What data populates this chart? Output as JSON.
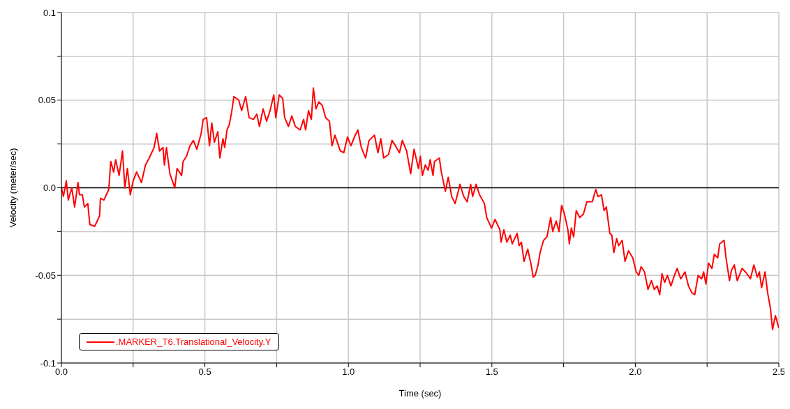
{
  "chart_data": {
    "type": "line",
    "xlabel": "Time (sec)",
    "ylabel": "Velocity (meter/sec)",
    "xlim": [
      0,
      2.5
    ],
    "ylim": [
      -0.1,
      0.1
    ],
    "xticks": [
      {
        "value": 0,
        "label": "0.0"
      },
      {
        "value": 0.25,
        "label": null
      },
      {
        "value": 0.5,
        "label": "0.5"
      },
      {
        "value": 0.75,
        "label": null
      },
      {
        "value": 1.0,
        "label": "1.0"
      },
      {
        "value": 1.25,
        "label": null
      },
      {
        "value": 1.5,
        "label": "1.5"
      },
      {
        "value": 1.75,
        "label": null
      },
      {
        "value": 2.0,
        "label": "2.0"
      },
      {
        "value": 2.25,
        "label": null
      },
      {
        "value": 2.5,
        "label": "2.5"
      }
    ],
    "yticks": [
      {
        "value": -0.1,
        "label": "-0.1"
      },
      {
        "value": -0.075,
        "label": null
      },
      {
        "value": -0.05,
        "label": "-0.05"
      },
      {
        "value": -0.025,
        "label": null
      },
      {
        "value": 0.0,
        "label": "0.0"
      },
      {
        "value": 0.025,
        "label": null
      },
      {
        "value": 0.05,
        "label": "0.05"
      },
      {
        "value": 0.075,
        "label": null
      },
      {
        "value": 0.1,
        "label": "0.1"
      }
    ],
    "grid": true,
    "legend": "bottom left",
    "marker": "none",
    "line_style": "solid",
    "ref_lines": [
      {
        "axis": "y",
        "value": 0,
        "color": "#000000"
      }
    ],
    "series": [
      {
        "name": ".MARKER_T6.Translational_Velocity.Y",
        "color": "#ff0000",
        "x": [
          0,
          0.007,
          0.017,
          0.024,
          0.036,
          0.046,
          0.058,
          0.063,
          0.073,
          0.08,
          0.092,
          0.099,
          0.116,
          0.133,
          0.136,
          0.148,
          0.165,
          0.172,
          0.182,
          0.189,
          0.201,
          0.213,
          0.221,
          0.23,
          0.24,
          0.25,
          0.262,
          0.279,
          0.293,
          0.306,
          0.323,
          0.332,
          0.342,
          0.354,
          0.359,
          0.366,
          0.378,
          0.395,
          0.403,
          0.419,
          0.424,
          0.436,
          0.448,
          0.46,
          0.472,
          0.487,
          0.494,
          0.506,
          0.516,
          0.524,
          0.533,
          0.545,
          0.552,
          0.563,
          0.569,
          0.577,
          0.585,
          0.593,
          0.601,
          0.618,
          0.628,
          0.642,
          0.654,
          0.669,
          0.681,
          0.69,
          0.703,
          0.715,
          0.727,
          0.74,
          0.747,
          0.759,
          0.771,
          0.778,
          0.791,
          0.803,
          0.815,
          0.832,
          0.844,
          0.851,
          0.861,
          0.871,
          0.878,
          0.887,
          0.897,
          0.909,
          0.921,
          0.934,
          0.943,
          0.953,
          0.972,
          0.984,
          0.997,
          1.009,
          1.021,
          1.033,
          1.045,
          1.06,
          1.072,
          1.091,
          1.103,
          1.113,
          1.123,
          1.14,
          1.152,
          1.164,
          1.178,
          1.188,
          1.203,
          1.217,
          1.229,
          1.244,
          1.251,
          1.258,
          1.268,
          1.278,
          1.285,
          1.295,
          1.3,
          1.317,
          1.324,
          1.338,
          1.348,
          1.36,
          1.372,
          1.389,
          1.402,
          1.414,
          1.426,
          1.433,
          1.445,
          1.457,
          1.474,
          1.482,
          1.499,
          1.511,
          1.528,
          1.532,
          1.542,
          1.552,
          1.564,
          1.571,
          1.588,
          1.595,
          1.603,
          1.612,
          1.625,
          1.637,
          1.644,
          1.651,
          1.661,
          1.668,
          1.68,
          1.692,
          1.705,
          1.712,
          1.724,
          1.734,
          1.743,
          1.753,
          1.765,
          1.77,
          1.777,
          1.785,
          1.794,
          1.806,
          1.819,
          1.831,
          1.85,
          1.862,
          1.87,
          1.882,
          1.891,
          1.899,
          1.911,
          1.918,
          1.925,
          1.935,
          1.942,
          1.954,
          1.964,
          1.976,
          1.991,
          2.003,
          2.012,
          2.02,
          2.032,
          2.044,
          2.056,
          2.066,
          2.076,
          2.085,
          2.093,
          2.102,
          2.112,
          2.124,
          2.136,
          2.146,
          2.158,
          2.173,
          2.185,
          2.197,
          2.207,
          2.219,
          2.231,
          2.238,
          2.246,
          2.255,
          2.267,
          2.275,
          2.287,
          2.294,
          2.309,
          2.316,
          2.328,
          2.335,
          2.345,
          2.355,
          2.372,
          2.384,
          2.401,
          2.413,
          2.425,
          2.432,
          2.44,
          2.452,
          2.461,
          2.471,
          2.478,
          2.488,
          2.5
        ],
        "values": [
          0,
          -0.005,
          0.004,
          -0.007,
          0,
          -0.011,
          0.003,
          -0.004,
          -0.004,
          -0.011,
          -0.009,
          -0.021,
          -0.022,
          -0.016,
          -0.006,
          -0.007,
          -0.001,
          0.015,
          0.009,
          0.016,
          0.007,
          0.021,
          0,
          0.011,
          -0.004,
          0.004,
          0.009,
          0.003,
          0.013,
          0.017,
          0.023,
          0.031,
          0.021,
          0.023,
          0.013,
          0.023,
          0.008,
          0,
          0.011,
          0.007,
          0.015,
          0.018,
          0.024,
          0.027,
          0.022,
          0.031,
          0.039,
          0.04,
          0.024,
          0.037,
          0.026,
          0.032,
          0.017,
          0.028,
          0.023,
          0.033,
          0.036,
          0.043,
          0.052,
          0.05,
          0.044,
          0.052,
          0.04,
          0.039,
          0.042,
          0.035,
          0.045,
          0.038,
          0.044,
          0.053,
          0.04,
          0.053,
          0.051,
          0.04,
          0.035,
          0.041,
          0.035,
          0.033,
          0.039,
          0.033,
          0.044,
          0.039,
          0.057,
          0.045,
          0.049,
          0.047,
          0.04,
          0.038,
          0.024,
          0.03,
          0.021,
          0.02,
          0.029,
          0.024,
          0.029,
          0.033,
          0.023,
          0.017,
          0.027,
          0.03,
          0.02,
          0.028,
          0.017,
          0.019,
          0.027,
          0.024,
          0.02,
          0.027,
          0.021,
          0.008,
          0.022,
          0.011,
          0.018,
          0.007,
          0.013,
          0.01,
          0.016,
          0.007,
          0.015,
          0.017,
          0.009,
          -0.002,
          0.006,
          -0.005,
          -0.009,
          0.002,
          -0.005,
          -0.008,
          0.002,
          -0.005,
          0.002,
          -0.004,
          -0.009,
          -0.017,
          -0.023,
          -0.018,
          -0.024,
          -0.031,
          -0.024,
          -0.031,
          -0.027,
          -0.032,
          -0.026,
          -0.033,
          -0.031,
          -0.042,
          -0.035,
          -0.044,
          -0.051,
          -0.05,
          -0.044,
          -0.037,
          -0.03,
          -0.028,
          -0.017,
          -0.025,
          -0.019,
          -0.025,
          -0.01,
          -0.015,
          -0.024,
          -0.032,
          -0.023,
          -0.028,
          -0.013,
          -0.017,
          -0.015,
          -0.008,
          -0.008,
          -0.001,
          -0.005,
          -0.004,
          -0.013,
          -0.011,
          -0.026,
          -0.027,
          -0.037,
          -0.029,
          -0.033,
          -0.03,
          -0.042,
          -0.036,
          -0.04,
          -0.048,
          -0.05,
          -0.045,
          -0.048,
          -0.058,
          -0.053,
          -0.058,
          -0.056,
          -0.061,
          -0.049,
          -0.054,
          -0.05,
          -0.056,
          -0.05,
          -0.046,
          -0.052,
          -0.048,
          -0.056,
          -0.06,
          -0.061,
          -0.05,
          -0.052,
          -0.048,
          -0.055,
          -0.043,
          -0.046,
          -0.038,
          -0.04,
          -0.032,
          -0.03,
          -0.04,
          -0.053,
          -0.047,
          -0.044,
          -0.053,
          -0.046,
          -0.048,
          -0.052,
          -0.044,
          -0.051,
          -0.048,
          -0.057,
          -0.048,
          -0.06,
          -0.069,
          -0.081,
          -0.073,
          -0.08
        ]
      }
    ]
  }
}
